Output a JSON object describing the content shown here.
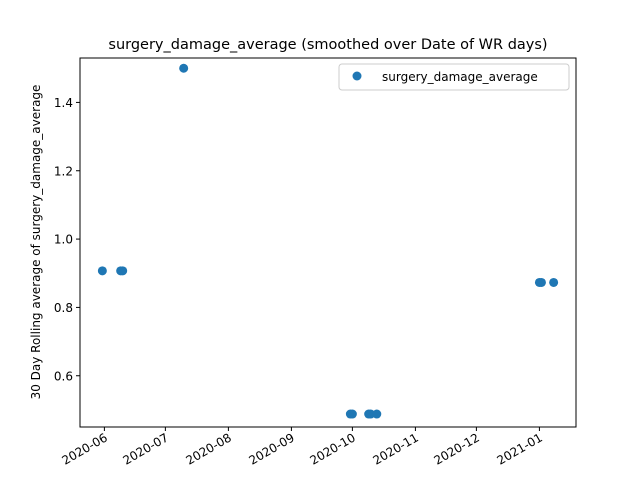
{
  "chart_data": {
    "type": "scatter",
    "title": "surgery_damage_average (smoothed over Date of WR days)",
    "xlabel": "",
    "ylabel": "30 Day Rolling average of surgery_damage_average",
    "x_tick_labels": [
      "2020-06",
      "2020-07",
      "2020-08",
      "2020-09",
      "2020-10",
      "2020-11",
      "2020-12",
      "2021-01"
    ],
    "x_tick_dates": [
      "2020-06-01",
      "2020-07-01",
      "2020-08-01",
      "2020-09-01",
      "2020-10-01",
      "2020-11-01",
      "2020-12-01",
      "2021-01-01"
    ],
    "y_tick_labels": [
      "0.6",
      "0.8",
      "1.0",
      "1.2",
      "1.4"
    ],
    "y_ticks": [
      0.6,
      0.8,
      1.0,
      1.2,
      1.4
    ],
    "xlim": [
      "2020-05-20",
      "2021-01-19"
    ],
    "ylim": [
      0.45,
      1.53
    ],
    "grid": false,
    "legend_position": "top-right",
    "series": [
      {
        "name": "surgery_damage_average",
        "color": "#1f77b4",
        "points": [
          {
            "x": "2020-05-31",
            "y": 0.907
          },
          {
            "x": "2020-06-09",
            "y": 0.907
          },
          {
            "x": "2020-06-10",
            "y": 0.907
          },
          {
            "x": "2020-07-10",
            "y": 1.5
          },
          {
            "x": "2020-09-30",
            "y": 0.488
          },
          {
            "x": "2020-10-01",
            "y": 0.488
          },
          {
            "x": "2020-10-09",
            "y": 0.488
          },
          {
            "x": "2020-10-10",
            "y": 0.488
          },
          {
            "x": "2020-10-13",
            "y": 0.488
          },
          {
            "x": "2021-01-01",
            "y": 0.873
          },
          {
            "x": "2021-01-02",
            "y": 0.873
          },
          {
            "x": "2021-01-08",
            "y": 0.873
          }
        ]
      }
    ]
  }
}
